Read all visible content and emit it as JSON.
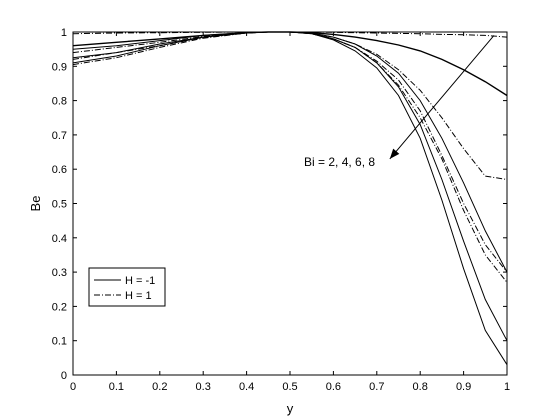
{
  "chart_data": {
    "type": "line",
    "xlabel": "y",
    "ylabel": "Be",
    "xlim": [
      0,
      1
    ],
    "ylim": [
      0,
      1
    ],
    "xticks": [
      "0",
      "0.1",
      "0.2",
      "0.3",
      "0.4",
      "0.5",
      "0.6",
      "0.7",
      "0.8",
      "0.9",
      "1"
    ],
    "yticks": [
      "0",
      "0.1",
      "0.2",
      "0.3",
      "0.4",
      "0.5",
      "0.6",
      "0.7",
      "0.8",
      "0.9",
      "1"
    ],
    "grid": false,
    "legend_position": "bottom-left",
    "legend": [
      {
        "label": "H = -1",
        "style": "solid"
      },
      {
        "label": "H = 1",
        "style": "dash-dot"
      }
    ],
    "annotation": {
      "text": "Bi = 2, 4, 6, 8",
      "arrow_from": [
        0.97,
        0.99
      ],
      "arrow_to": [
        0.73,
        0.63
      ]
    },
    "series": [
      {
        "style": "solid",
        "x": [
          0,
          0.1,
          0.2,
          0.3,
          0.4,
          0.45,
          0.5,
          0.55,
          0.6,
          0.65,
          0.7,
          0.75,
          0.8,
          0.85,
          0.9,
          0.95,
          1.0
        ],
        "y": [
          0.96,
          0.97,
          0.98,
          0.99,
          0.998,
          1.0,
          1.0,
          0.998,
          0.993,
          0.985,
          0.975,
          0.962,
          0.945,
          0.92,
          0.89,
          0.855,
          0.815
        ]
      },
      {
        "style": "solid",
        "x": [
          0,
          0.1,
          0.2,
          0.3,
          0.4,
          0.45,
          0.5,
          0.55,
          0.6,
          0.65,
          0.7,
          0.75,
          0.8,
          0.85,
          0.9,
          0.95,
          1.0
        ],
        "y": [
          0.95,
          0.96,
          0.975,
          0.99,
          0.998,
          1.0,
          1.0,
          0.997,
          0.985,
          0.965,
          0.93,
          0.88,
          0.8,
          0.69,
          0.56,
          0.42,
          0.3
        ]
      },
      {
        "style": "solid",
        "x": [
          0,
          0.1,
          0.2,
          0.3,
          0.4,
          0.45,
          0.5,
          0.55,
          0.6,
          0.65,
          0.7,
          0.75,
          0.8,
          0.85,
          0.9,
          0.95,
          1.0
        ],
        "y": [
          0.925,
          0.94,
          0.965,
          0.985,
          0.997,
          1.0,
          1.0,
          0.996,
          0.98,
          0.955,
          0.91,
          0.84,
          0.73,
          0.57,
          0.39,
          0.22,
          0.1
        ]
      },
      {
        "style": "solid",
        "x": [
          0,
          0.1,
          0.2,
          0.3,
          0.4,
          0.45,
          0.5,
          0.55,
          0.6,
          0.65,
          0.7,
          0.75,
          0.8,
          0.85,
          0.9,
          0.95,
          1.0
        ],
        "y": [
          0.91,
          0.93,
          0.96,
          0.985,
          0.997,
          1.0,
          1.0,
          0.995,
          0.977,
          0.945,
          0.895,
          0.815,
          0.69,
          0.51,
          0.31,
          0.13,
          0.03
        ]
      },
      {
        "style": "dash-dot",
        "x": [
          0,
          0.1,
          0.2,
          0.3,
          0.4,
          0.45,
          0.5,
          0.55,
          0.6,
          0.65,
          0.7,
          0.75,
          0.8,
          0.85,
          0.9,
          0.95,
          1.0
        ],
        "y": [
          0.995,
          0.997,
          0.998,
          0.999,
          1.0,
          1.0,
          1.0,
          1.0,
          0.999,
          0.998,
          0.997,
          0.996,
          0.995,
          0.993,
          0.992,
          0.99,
          0.985
        ]
      },
      {
        "style": "dash-dot",
        "x": [
          0,
          0.1,
          0.2,
          0.3,
          0.4,
          0.45,
          0.5,
          0.55,
          0.6,
          0.65,
          0.7,
          0.75,
          0.8,
          0.85,
          0.9,
          0.95,
          1.0
        ],
        "y": [
          0.94,
          0.955,
          0.97,
          0.987,
          0.998,
          1.0,
          1.0,
          0.996,
          0.985,
          0.965,
          0.935,
          0.89,
          0.83,
          0.75,
          0.66,
          0.58,
          0.57
        ]
      },
      {
        "style": "dash-dot",
        "x": [
          0,
          0.1,
          0.2,
          0.3,
          0.4,
          0.45,
          0.5,
          0.55,
          0.6,
          0.65,
          0.7,
          0.75,
          0.8,
          0.85,
          0.9,
          0.95,
          1.0
        ],
        "y": [
          0.92,
          0.94,
          0.96,
          0.984,
          0.997,
          1.0,
          1.0,
          0.995,
          0.98,
          0.955,
          0.915,
          0.86,
          0.77,
          0.64,
          0.5,
          0.38,
          0.3
        ]
      },
      {
        "style": "dash-dot",
        "x": [
          0,
          0.1,
          0.2,
          0.3,
          0.4,
          0.45,
          0.5,
          0.55,
          0.6,
          0.65,
          0.7,
          0.75,
          0.8,
          0.85,
          0.9,
          0.95,
          1.0
        ],
        "y": [
          0.905,
          0.925,
          0.955,
          0.982,
          0.997,
          1.0,
          1.0,
          0.995,
          0.98,
          0.955,
          0.91,
          0.845,
          0.75,
          0.63,
          0.48,
          0.35,
          0.27
        ]
      }
    ]
  }
}
